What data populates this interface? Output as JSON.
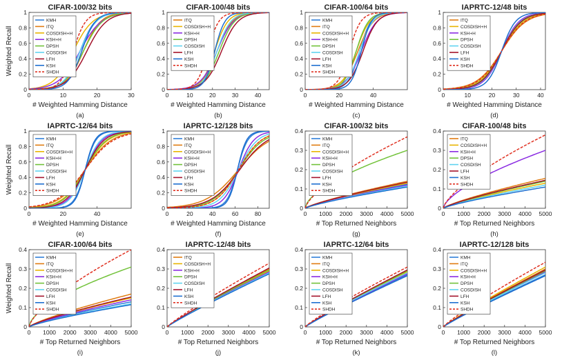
{
  "figure": {
    "colors": {
      "KMH": "#2f7fd8",
      "ITQ": "#e07b10",
      "COSDISH+H": "#e8b400",
      "KSH+H": "#8a2be2",
      "DPSH": "#72c23a",
      "COSDISH": "#5fd3f0",
      "LFH": "#a3122a",
      "KSH": "#1e6fd0",
      "SHDH": "#e03020"
    }
  },
  "chart_data": [
    {
      "id": "a",
      "type": "line",
      "title": "CIFAR-100/32 bits",
      "caption": "(a)",
      "xlabel": "# Weighted Hamming Distance",
      "ylabel": "Weighted Recall",
      "xlim": [
        0,
        30
      ],
      "ylim": [
        0,
        1
      ],
      "xticks": [
        0,
        10,
        20,
        30
      ],
      "yticks": [
        0,
        0.2,
        0.4,
        0.6,
        0.8,
        1
      ],
      "ytick_labels": [
        "0",
        "0.2",
        "0.4",
        "0.6",
        "0.8",
        "1"
      ],
      "kind": "sig",
      "legend": [
        "KMH",
        "ITQ",
        "COSDISH+H",
        "KSH+H",
        "DPSH",
        "COSDISH",
        "LFH",
        "KSH",
        "SHDH"
      ],
      "series": [
        {
          "name": "KMH",
          "c": 15,
          "k": 0.45
        },
        {
          "name": "ITQ",
          "c": 16,
          "k": 0.4
        },
        {
          "name": "COSDISH+H",
          "c": 13,
          "k": 0.35
        },
        {
          "name": "KSH+H",
          "c": 15,
          "k": 0.32
        },
        {
          "name": "DPSH",
          "c": 16,
          "k": 0.36
        },
        {
          "name": "COSDISH",
          "c": 15,
          "k": 0.42
        },
        {
          "name": "LFH",
          "c": 17,
          "k": 0.35
        },
        {
          "name": "KSH",
          "c": 15.5,
          "k": 0.5
        },
        {
          "name": "SHDH",
          "c": 13,
          "k": 0.55
        }
      ]
    },
    {
      "id": "b",
      "type": "line",
      "title": "CIFAR-100/48 bits",
      "caption": "(b)",
      "xlabel": "# Weighted Hamming Distance",
      "ylabel": "",
      "xlim": [
        0,
        45
      ],
      "ylim": [
        0,
        1
      ],
      "xticks": [
        0,
        10,
        20,
        30,
        40
      ],
      "yticks": [
        0,
        0.2,
        0.4,
        0.6,
        0.8,
        1
      ],
      "ytick_labels": [
        "0",
        "0.2",
        "0.4",
        "0.6",
        "0.8",
        "1"
      ],
      "kind": "sig",
      "legend": [
        "ITQ",
        "COSDISH+H",
        "KSH+H",
        "DPSH",
        "COSDISH",
        "LFH",
        "KSH",
        "SHDH"
      ],
      "series": [
        {
          "name": "ITQ",
          "c": 22,
          "k": 0.3
        },
        {
          "name": "COSDISH+H",
          "c": 21,
          "k": 0.35
        },
        {
          "name": "KSH+H",
          "c": 22,
          "k": 0.28
        },
        {
          "name": "DPSH",
          "c": 23,
          "k": 0.3
        },
        {
          "name": "COSDISH",
          "c": 22,
          "k": 0.33
        },
        {
          "name": "LFH",
          "c": 24,
          "k": 0.28
        },
        {
          "name": "KSH",
          "c": 21,
          "k": 0.45
        },
        {
          "name": "SHDH",
          "c": 18,
          "k": 0.42
        }
      ]
    },
    {
      "id": "c",
      "type": "line",
      "title": "CIFAR-100/64 bits",
      "caption": "(c)",
      "xlabel": "# Weighted Hamming Distance",
      "ylabel": "",
      "xlim": [
        0,
        60
      ],
      "ylim": [
        0,
        1
      ],
      "xticks": [
        0,
        20,
        40
      ],
      "yticks": [
        0,
        0.2,
        0.4,
        0.6,
        0.8,
        1
      ],
      "ytick_labels": [
        "0",
        "0.2",
        "0.4",
        "0.6",
        "0.8",
        "1"
      ],
      "kind": "sig",
      "legend": [
        "KMH",
        "ITQ",
        "COSDISH+H",
        "KSH+H",
        "DPSH",
        "COSDISH",
        "LFH",
        "KSH",
        "SHDH"
      ],
      "series": [
        {
          "name": "KMH",
          "c": 32,
          "k": 0.3
        },
        {
          "name": "ITQ",
          "c": 31,
          "k": 0.22
        },
        {
          "name": "COSDISH+H",
          "c": 30,
          "k": 0.25
        },
        {
          "name": "KSH+H",
          "c": 33,
          "k": 0.22
        },
        {
          "name": "DPSH",
          "c": 30,
          "k": 0.28
        },
        {
          "name": "COSDISH",
          "c": 32,
          "k": 0.26
        },
        {
          "name": "LFH",
          "c": 34,
          "k": 0.24
        },
        {
          "name": "KSH",
          "c": 33,
          "k": 0.34
        },
        {
          "name": "SHDH",
          "c": 26,
          "k": 0.3
        }
      ]
    },
    {
      "id": "d",
      "type": "line",
      "title": "IAPRTC-12/48 bits",
      "caption": "(d)",
      "xlabel": "# Weighted Hamming Distance",
      "ylabel": "",
      "xlim": [
        0,
        42
      ],
      "ylim": [
        0,
        1
      ],
      "xticks": [
        0,
        10,
        20,
        30,
        40
      ],
      "yticks": [
        0,
        0.2,
        0.4,
        0.6,
        0.8,
        1
      ],
      "ytick_labels": [
        "0",
        "0.2",
        "0.4",
        "0.6",
        "0.8",
        "1"
      ],
      "kind": "sig",
      "legend": [
        "ITQ",
        "COSDISH+H",
        "KSH+H",
        "DPSH",
        "COSDISH",
        "LFH",
        "KSH",
        "SHDH"
      ],
      "series": [
        {
          "name": "ITQ",
          "c": 24,
          "k": 0.2
        },
        {
          "name": "COSDISH+H",
          "c": 24,
          "k": 0.22
        },
        {
          "name": "KSH+H",
          "c": 24,
          "k": 0.28
        },
        {
          "name": "DPSH",
          "c": 24,
          "k": 0.24
        },
        {
          "name": "COSDISH",
          "c": 24,
          "k": 0.26
        },
        {
          "name": "LFH",
          "c": 24,
          "k": 0.25
        },
        {
          "name": "KSH",
          "c": 24,
          "k": 0.35
        },
        {
          "name": "SHDH",
          "c": 24,
          "k": 0.21
        }
      ]
    },
    {
      "id": "e",
      "type": "line",
      "title": "IAPRTC-12/64 bits",
      "caption": "(e)",
      "xlabel": "# Weighted Hamming Distance",
      "ylabel": "Weighted Recall",
      "xlim": [
        0,
        60
      ],
      "ylim": [
        0,
        1
      ],
      "xticks": [
        0,
        20,
        40
      ],
      "yticks": [
        0,
        0.2,
        0.4,
        0.6,
        0.8,
        1
      ],
      "ytick_labels": [
        "0",
        "0.2",
        "0.4",
        "0.6",
        "0.8",
        "1"
      ],
      "kind": "sig",
      "legend": [
        "KMH",
        "ITQ",
        "COSDISH+H",
        "KSH+H",
        "DPSH",
        "COSDISH",
        "LFH",
        "KSH",
        "SHDH"
      ],
      "series": [
        {
          "name": "KMH",
          "c": 33,
          "k": 0.32
        },
        {
          "name": "ITQ",
          "c": 33,
          "k": 0.13
        },
        {
          "name": "COSDISH+H",
          "c": 33,
          "k": 0.15
        },
        {
          "name": "KSH+H",
          "c": 33,
          "k": 0.2
        },
        {
          "name": "DPSH",
          "c": 33,
          "k": 0.16
        },
        {
          "name": "COSDISH",
          "c": 33,
          "k": 0.22
        },
        {
          "name": "LFH",
          "c": 33,
          "k": 0.18
        },
        {
          "name": "KSH",
          "c": 33,
          "k": 0.35
        },
        {
          "name": "SHDH",
          "c": 33,
          "k": 0.12
        }
      ]
    },
    {
      "id": "f",
      "type": "line",
      "title": "IAPRTC-12/128 bits",
      "caption": "(f)",
      "xlabel": "# Weighted Hamming Distance",
      "ylabel": "",
      "xlim": [
        0,
        90
      ],
      "ylim": [
        0,
        1
      ],
      "xticks": [
        0,
        20,
        40,
        60,
        80
      ],
      "yticks": [
        0,
        0.2,
        0.4,
        0.6,
        0.8,
        1
      ],
      "ytick_labels": [
        "0",
        "0.2",
        "0.4",
        "0.6",
        "0.8",
        "1"
      ],
      "kind": "sig",
      "legend": [
        "KMH",
        "ITQ",
        "COSDISH+H",
        "KSH+H",
        "DPSH",
        "COSDISH",
        "LFH",
        "KSH",
        "SHDH"
      ],
      "series": [
        {
          "name": "KMH",
          "c": 62,
          "k": 0.22
        },
        {
          "name": "ITQ",
          "c": 63,
          "k": 0.07
        },
        {
          "name": "COSDISH+H",
          "c": 63,
          "k": 0.1
        },
        {
          "name": "KSH+H",
          "c": 63,
          "k": 0.15
        },
        {
          "name": "DPSH",
          "c": 63,
          "k": 0.09
        },
        {
          "name": "COSDISH",
          "c": 63,
          "k": 0.12
        },
        {
          "name": "LFH",
          "c": 64,
          "k": 0.08
        },
        {
          "name": "KSH",
          "c": 62,
          "k": 0.25
        },
        {
          "name": "SHDH",
          "c": 63,
          "k": 0.1
        }
      ]
    },
    {
      "id": "g",
      "type": "line",
      "title": "CIFAR-100/32 bits",
      "caption": "(g)",
      "xlabel": "# Top Returned Neighbors",
      "ylabel": "",
      "xlim": [
        0,
        5000
      ],
      "ylim": [
        0,
        0.4
      ],
      "xticks": [
        0,
        1000,
        2000,
        3000,
        4000,
        5000
      ],
      "yticks": [
        0,
        0.1,
        0.2,
        0.3,
        0.4
      ],
      "ytick_labels": [
        "0",
        "0.1",
        "0.2",
        "0.3",
        "0.4"
      ],
      "kind": "top",
      "legend": [
        "KMH",
        "ITQ",
        "COSDISH+H",
        "KSH+H",
        "DPSH",
        "COSDISH",
        "LFH",
        "KSH",
        "SHDH"
      ],
      "series": [
        {
          "name": "KMH",
          "end": 0.125,
          "p": 0.8
        },
        {
          "name": "ITQ",
          "end": 0.14,
          "p": 0.8
        },
        {
          "name": "COSDISH+H",
          "end": 0.13,
          "p": 0.8
        },
        {
          "name": "KSH+H",
          "end": 0.12,
          "p": 0.8
        },
        {
          "name": "DPSH",
          "end": 0.3,
          "p": 0.6
        },
        {
          "name": "COSDISH",
          "end": 0.115,
          "p": 0.8
        },
        {
          "name": "LFH",
          "end": 0.135,
          "p": 0.8
        },
        {
          "name": "KSH",
          "end": 0.11,
          "p": 0.8
        },
        {
          "name": "SHDH",
          "end": 0.37,
          "p": 0.7
        }
      ]
    },
    {
      "id": "h",
      "type": "line",
      "title": "CIFAR-100/48 bits",
      "caption": "(h)",
      "xlabel": "# Top Returned Neighbors",
      "ylabel": "",
      "xlim": [
        0,
        5000
      ],
      "ylim": [
        0,
        0.4
      ],
      "xticks": [
        0,
        1000,
        2000,
        3000,
        4000,
        5000
      ],
      "yticks": [
        0,
        0.1,
        0.2,
        0.3,
        0.4
      ],
      "ytick_labels": [
        "0",
        "0.1",
        "0.2",
        "0.3",
        "0.4"
      ],
      "kind": "top",
      "legend": [
        "ITQ",
        "COSDISH+H",
        "KSH+H",
        "DPSH",
        "COSDISH",
        "LFH",
        "KSH",
        "SHDH"
      ],
      "series": [
        {
          "name": "ITQ",
          "end": 0.155,
          "p": 0.8
        },
        {
          "name": "COSDISH+H",
          "end": 0.13,
          "p": 0.8
        },
        {
          "name": "KSH+H",
          "end": 0.3,
          "p": 0.65
        },
        {
          "name": "DPSH",
          "end": 0.14,
          "p": 0.8
        },
        {
          "name": "COSDISH",
          "end": 0.12,
          "p": 0.8
        },
        {
          "name": "LFH",
          "end": 0.145,
          "p": 0.8
        },
        {
          "name": "KSH",
          "end": 0.11,
          "p": 0.8
        },
        {
          "name": "SHDH",
          "end": 0.38,
          "p": 0.7
        }
      ]
    },
    {
      "id": "i",
      "type": "line",
      "title": "CIFAR-100/64 bits",
      "caption": "(i)",
      "xlabel": "# Top Returned Neighbors",
      "ylabel": "Weighted Recall",
      "xlim": [
        0,
        5000
      ],
      "ylim": [
        0,
        0.4
      ],
      "xticks": [
        0,
        1000,
        2000,
        3000,
        4000,
        5000
      ],
      "yticks": [
        0,
        0.1,
        0.2,
        0.3,
        0.4
      ],
      "ytick_labels": [
        "0",
        "0.1",
        "0.2",
        "0.3",
        "0.4"
      ],
      "kind": "top",
      "legend": [
        "KMH",
        "ITQ",
        "COSDISH+H",
        "KSH+H",
        "DPSH",
        "COSDISH",
        "LFH",
        "KSH",
        "SHDH"
      ],
      "series": [
        {
          "name": "KMH",
          "end": 0.13,
          "p": 0.8
        },
        {
          "name": "ITQ",
          "end": 0.17,
          "p": 0.8
        },
        {
          "name": "COSDISH+H",
          "end": 0.15,
          "p": 0.8
        },
        {
          "name": "KSH+H",
          "end": 0.14,
          "p": 0.8
        },
        {
          "name": "DPSH",
          "end": 0.31,
          "p": 0.6
        },
        {
          "name": "COSDISH",
          "end": 0.12,
          "p": 0.8
        },
        {
          "name": "LFH",
          "end": 0.155,
          "p": 0.8
        },
        {
          "name": "KSH",
          "end": 0.115,
          "p": 0.8
        },
        {
          "name": "SHDH",
          "end": 0.4,
          "p": 0.7
        }
      ]
    },
    {
      "id": "j",
      "type": "line",
      "title": "IAPRTC-12/48 bits",
      "caption": "(j)",
      "xlabel": "# Top Returned Neighbors",
      "ylabel": "",
      "xlim": [
        0,
        5000
      ],
      "ylim": [
        0,
        0.4
      ],
      "xticks": [
        0,
        1000,
        2000,
        3000,
        4000,
        5000
      ],
      "yticks": [
        0,
        0.1,
        0.2,
        0.3,
        0.4
      ],
      "ytick_labels": [
        "0",
        "0.1",
        "0.2",
        "0.3",
        "0.4"
      ],
      "kind": "top",
      "legend": [
        "ITQ",
        "COSDISH+H",
        "KSH+H",
        "DPSH",
        "COSDISH",
        "LFH",
        "KSH",
        "SHDH"
      ],
      "series": [
        {
          "name": "ITQ",
          "end": 0.3,
          "p": 0.92
        },
        {
          "name": "COSDISH+H",
          "end": 0.29,
          "p": 0.92
        },
        {
          "name": "KSH+H",
          "end": 0.285,
          "p": 0.92
        },
        {
          "name": "DPSH",
          "end": 0.295,
          "p": 0.92
        },
        {
          "name": "COSDISH",
          "end": 0.28,
          "p": 0.92
        },
        {
          "name": "LFH",
          "end": 0.305,
          "p": 0.92
        },
        {
          "name": "KSH",
          "end": 0.275,
          "p": 0.92
        },
        {
          "name": "SHDH",
          "end": 0.33,
          "p": 0.9
        }
      ]
    },
    {
      "id": "k",
      "type": "line",
      "title": "IAPRTC-12/64 bits",
      "caption": "(k)",
      "xlabel": "# Top Returned Neighbors",
      "ylabel": "",
      "xlim": [
        0,
        5000
      ],
      "ylim": [
        0,
        0.4
      ],
      "xticks": [
        0,
        1000,
        2000,
        3000,
        4000,
        5000
      ],
      "yticks": [
        0,
        0.1,
        0.2,
        0.3,
        0.4
      ],
      "ytick_labels": [
        "0",
        "0.1",
        "0.2",
        "0.3",
        "0.4"
      ],
      "kind": "top",
      "legend": [
        "KMH",
        "ITQ",
        "COSDISH+H",
        "KSH+H",
        "DPSH",
        "COSDISH",
        "LFH",
        "KSH",
        "SHDH"
      ],
      "series": [
        {
          "name": "KMH",
          "end": 0.27,
          "p": 0.92
        },
        {
          "name": "ITQ",
          "end": 0.28,
          "p": 0.92
        },
        {
          "name": "COSDISH+H",
          "end": 0.285,
          "p": 0.92
        },
        {
          "name": "KSH+H",
          "end": 0.275,
          "p": 0.92
        },
        {
          "name": "DPSH",
          "end": 0.29,
          "p": 0.92
        },
        {
          "name": "COSDISH",
          "end": 0.28,
          "p": 0.92
        },
        {
          "name": "LFH",
          "end": 0.295,
          "p": 0.92
        },
        {
          "name": "KSH",
          "end": 0.265,
          "p": 0.92
        },
        {
          "name": "SHDH",
          "end": 0.31,
          "p": 0.88
        }
      ]
    },
    {
      "id": "l",
      "type": "line",
      "title": "IAPRTC-12/128 bits",
      "caption": "(l)",
      "xlabel": "# Top Returned Neighbors",
      "ylabel": "",
      "xlim": [
        0,
        5000
      ],
      "ylim": [
        0,
        0.4
      ],
      "xticks": [
        0,
        1000,
        2000,
        3000,
        4000,
        5000
      ],
      "yticks": [
        0,
        0.1,
        0.2,
        0.3,
        0.4
      ],
      "ytick_labels": [
        "0",
        "0.1",
        "0.2",
        "0.3",
        "0.4"
      ],
      "kind": "top",
      "legend": [
        "KMH",
        "ITQ",
        "COSDISH+H",
        "KSH+H",
        "DPSH",
        "COSDISH",
        "LFH",
        "KSH",
        "SHDH"
      ],
      "series": [
        {
          "name": "KMH",
          "end": 0.27,
          "p": 0.92
        },
        {
          "name": "ITQ",
          "end": 0.3,
          "p": 0.92
        },
        {
          "name": "COSDISH+H",
          "end": 0.31,
          "p": 0.92
        },
        {
          "name": "KSH+H",
          "end": 0.285,
          "p": 0.92
        },
        {
          "name": "DPSH",
          "end": 0.29,
          "p": 0.92
        },
        {
          "name": "COSDISH",
          "end": 0.28,
          "p": 0.92
        },
        {
          "name": "LFH",
          "end": 0.295,
          "p": 0.92
        },
        {
          "name": "KSH",
          "end": 0.265,
          "p": 0.92
        },
        {
          "name": "SHDH",
          "end": 0.335,
          "p": 0.88
        }
      ]
    }
  ]
}
